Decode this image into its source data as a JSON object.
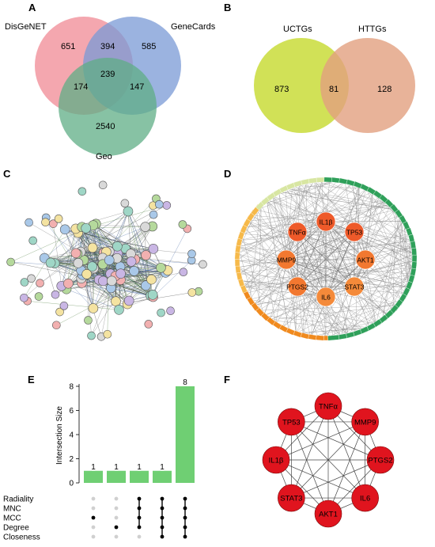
{
  "panels": {
    "A": {
      "label": "A",
      "sets": [
        {
          "name": "DisGeNET",
          "color": "#f08a94"
        },
        {
          "name": "GeneCards",
          "color": "#7a99d6"
        },
        {
          "name": "Geo",
          "color": "#5fae86"
        }
      ],
      "regions": {
        "disgenet_only": "651",
        "disgenet_genecards": "394",
        "genecards_only": "585",
        "all_three": "239",
        "disgenet_geo": "174",
        "genecards_geo": "147",
        "geo_only": "2540"
      }
    },
    "B": {
      "label": "B",
      "sets": [
        {
          "name": "UCTGs",
          "color": "#c9dc3a"
        },
        {
          "name": "HTTGs",
          "color": "#e2a07f"
        }
      ],
      "regions": {
        "uctgs_only": "873",
        "overlap": "81",
        "httgs_only": "128"
      }
    },
    "C": {
      "label": "C"
    },
    "D": {
      "label": "D",
      "hub_genes": [
        {
          "name": "IL1β"
        },
        {
          "name": "TNFα"
        },
        {
          "name": "TP53"
        },
        {
          "name": "MMP9"
        },
        {
          "name": "AKT1"
        },
        {
          "name": "PTGS2"
        },
        {
          "name": "STAT3"
        },
        {
          "name": "IL6"
        }
      ],
      "ring_node_count": 73
    },
    "E": {
      "label": "E",
      "ylabel": "Intersection Size",
      "yticks": [
        "0",
        "2",
        "4",
        "6",
        "8"
      ],
      "sets": [
        "Radiality",
        "MNC",
        "MCC",
        "Degree",
        "Closeness"
      ],
      "bar_color": "#6fcf73"
    },
    "F": {
      "label": "F",
      "nodes": [
        "TNFα",
        "MMP9",
        "PTGS2",
        "IL6",
        "AKT1",
        "STAT3",
        "IL1β",
        "TP53"
      ],
      "node_color": "#e0141e"
    }
  },
  "chart_data": {
    "type": "bar",
    "title": "",
    "xlabel": "",
    "ylabel": "Intersection Size",
    "ylim": [
      0,
      8.3
    ],
    "categories": [
      "Radiality",
      "MNC",
      "MCC",
      "Degree",
      "Closeness"
    ],
    "intersections": [
      {
        "sets": [
          "MCC"
        ],
        "value": 1
      },
      {
        "sets": [
          "Degree"
        ],
        "value": 1
      },
      {
        "sets": [
          "Radiality",
          "MNC",
          "MCC",
          "Degree"
        ],
        "value": 1
      },
      {
        "sets": [
          "Radiality",
          "MNC",
          "MCC",
          "Degree",
          "Closeness"
        ],
        "value": 1
      },
      {
        "sets": [
          "Radiality",
          "MNC",
          "MCC",
          "Degree",
          "Closeness"
        ],
        "value": 8
      }
    ],
    "values": [
      1,
      1,
      1,
      1,
      8
    ],
    "grid": false,
    "legend": "none"
  }
}
